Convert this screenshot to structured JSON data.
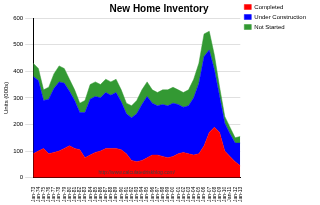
{
  "chart_data": {
    "type": "area",
    "title": "New Home Inventory",
    "y_label": "Units (000s)",
    "annotations": [
      "http://www.calculatedriskblog.com/"
    ],
    "categories": [
      "Jan-73",
      "Jan-74",
      "Jan-75",
      "Jan-76",
      "Jan-77",
      "Jan-78",
      "Jan-79",
      "Jan-80",
      "Jan-81",
      "Jan-82",
      "Jan-83",
      "Jan-84",
      "Jan-85",
      "Jan-86",
      "Jan-87",
      "Jan-88",
      "Jan-89",
      "Jan-90",
      "Jan-91",
      "Jan-92",
      "Jan-93",
      "Jan-94",
      "Jan-95",
      "Jan-96",
      "Jan-97",
      "Jan-98",
      "Jan-99",
      "Jan-00",
      "Jan-01",
      "Jan-02",
      "Jan-03",
      "Jan-04",
      "Jan-05",
      "Jan-06",
      "Jan-07",
      "Jan-08",
      "Jan-09",
      "Jan-10",
      "Jan-11",
      "Jan-12",
      "Jan-13"
    ],
    "series": [
      {
        "name": "Completed",
        "color": "#ff0000",
        "values": [
          90,
          100,
          110,
          90,
          95,
          100,
          110,
          120,
          110,
          105,
          75,
          85,
          95,
          100,
          110,
          110,
          110,
          105,
          90,
          65,
          60,
          65,
          75,
          85,
          85,
          80,
          75,
          80,
          90,
          95,
          90,
          85,
          90,
          120,
          170,
          190,
          170,
          100,
          80,
          60,
          45
        ]
      },
      {
        "name": "Under Construction",
        "color": "#0000ff",
        "values": [
          290,
          265,
          180,
          205,
          240,
          260,
          245,
          205,
          180,
          140,
          170,
          210,
          210,
          200,
          210,
          200,
          210,
          180,
          150,
          160,
          180,
          210,
          230,
          195,
          185,
          195,
          195,
          200,
          185,
          170,
          180,
          215,
          265,
          335,
          310,
          215,
          135,
          105,
          85,
          70,
          85
        ]
      },
      {
        "name": "Not Started",
        "color": "#339933",
        "values": [
          50,
          45,
          40,
          45,
          55,
          60,
          55,
          45,
          40,
          35,
          45,
          55,
          55,
          50,
          50,
          50,
          50,
          45,
          40,
          45,
          50,
          55,
          55,
          50,
          50,
          55,
          60,
          60,
          55,
          55,
          60,
          70,
          75,
          85,
          70,
          55,
          35,
          25,
          25,
          20,
          25
        ]
      }
    ],
    "ylim": [
      0,
      600
    ],
    "yticks": [
      0,
      100,
      200,
      300,
      400,
      500,
      600
    ],
    "stacked": true,
    "grid": true,
    "legend": "right"
  }
}
